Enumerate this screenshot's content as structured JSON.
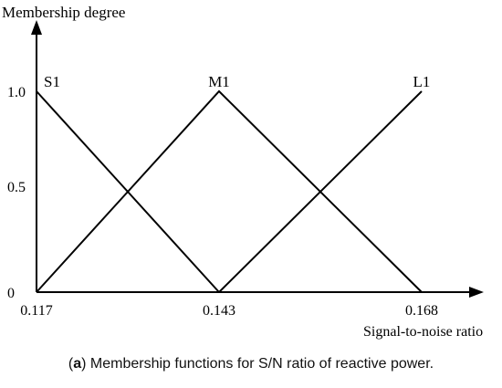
{
  "chart_data": {
    "type": "line",
    "ylabel": "Membership degree",
    "xlabel": "Signal-to-noise ratio",
    "x_ticks": [
      "0.117",
      "0.143",
      "0.168"
    ],
    "y_ticks": [
      "0",
      "0.5",
      "1.0"
    ],
    "xlim": [
      0.117,
      0.168
    ],
    "ylim": [
      0,
      1.2
    ],
    "grid": false,
    "series": [
      {
        "name": "S1",
        "x": [
          0.117,
          0.143
        ],
        "y": [
          1,
          0
        ]
      },
      {
        "name": "M1",
        "x": [
          0.117,
          0.143,
          0.168
        ],
        "y": [
          0,
          1,
          0
        ]
      },
      {
        "name": "L1",
        "x": [
          0.143,
          0.168
        ],
        "y": [
          0,
          1
        ]
      }
    ]
  },
  "caption": {
    "label": "a",
    "text": " Membership functions for S/N ratio of reactive power."
  }
}
